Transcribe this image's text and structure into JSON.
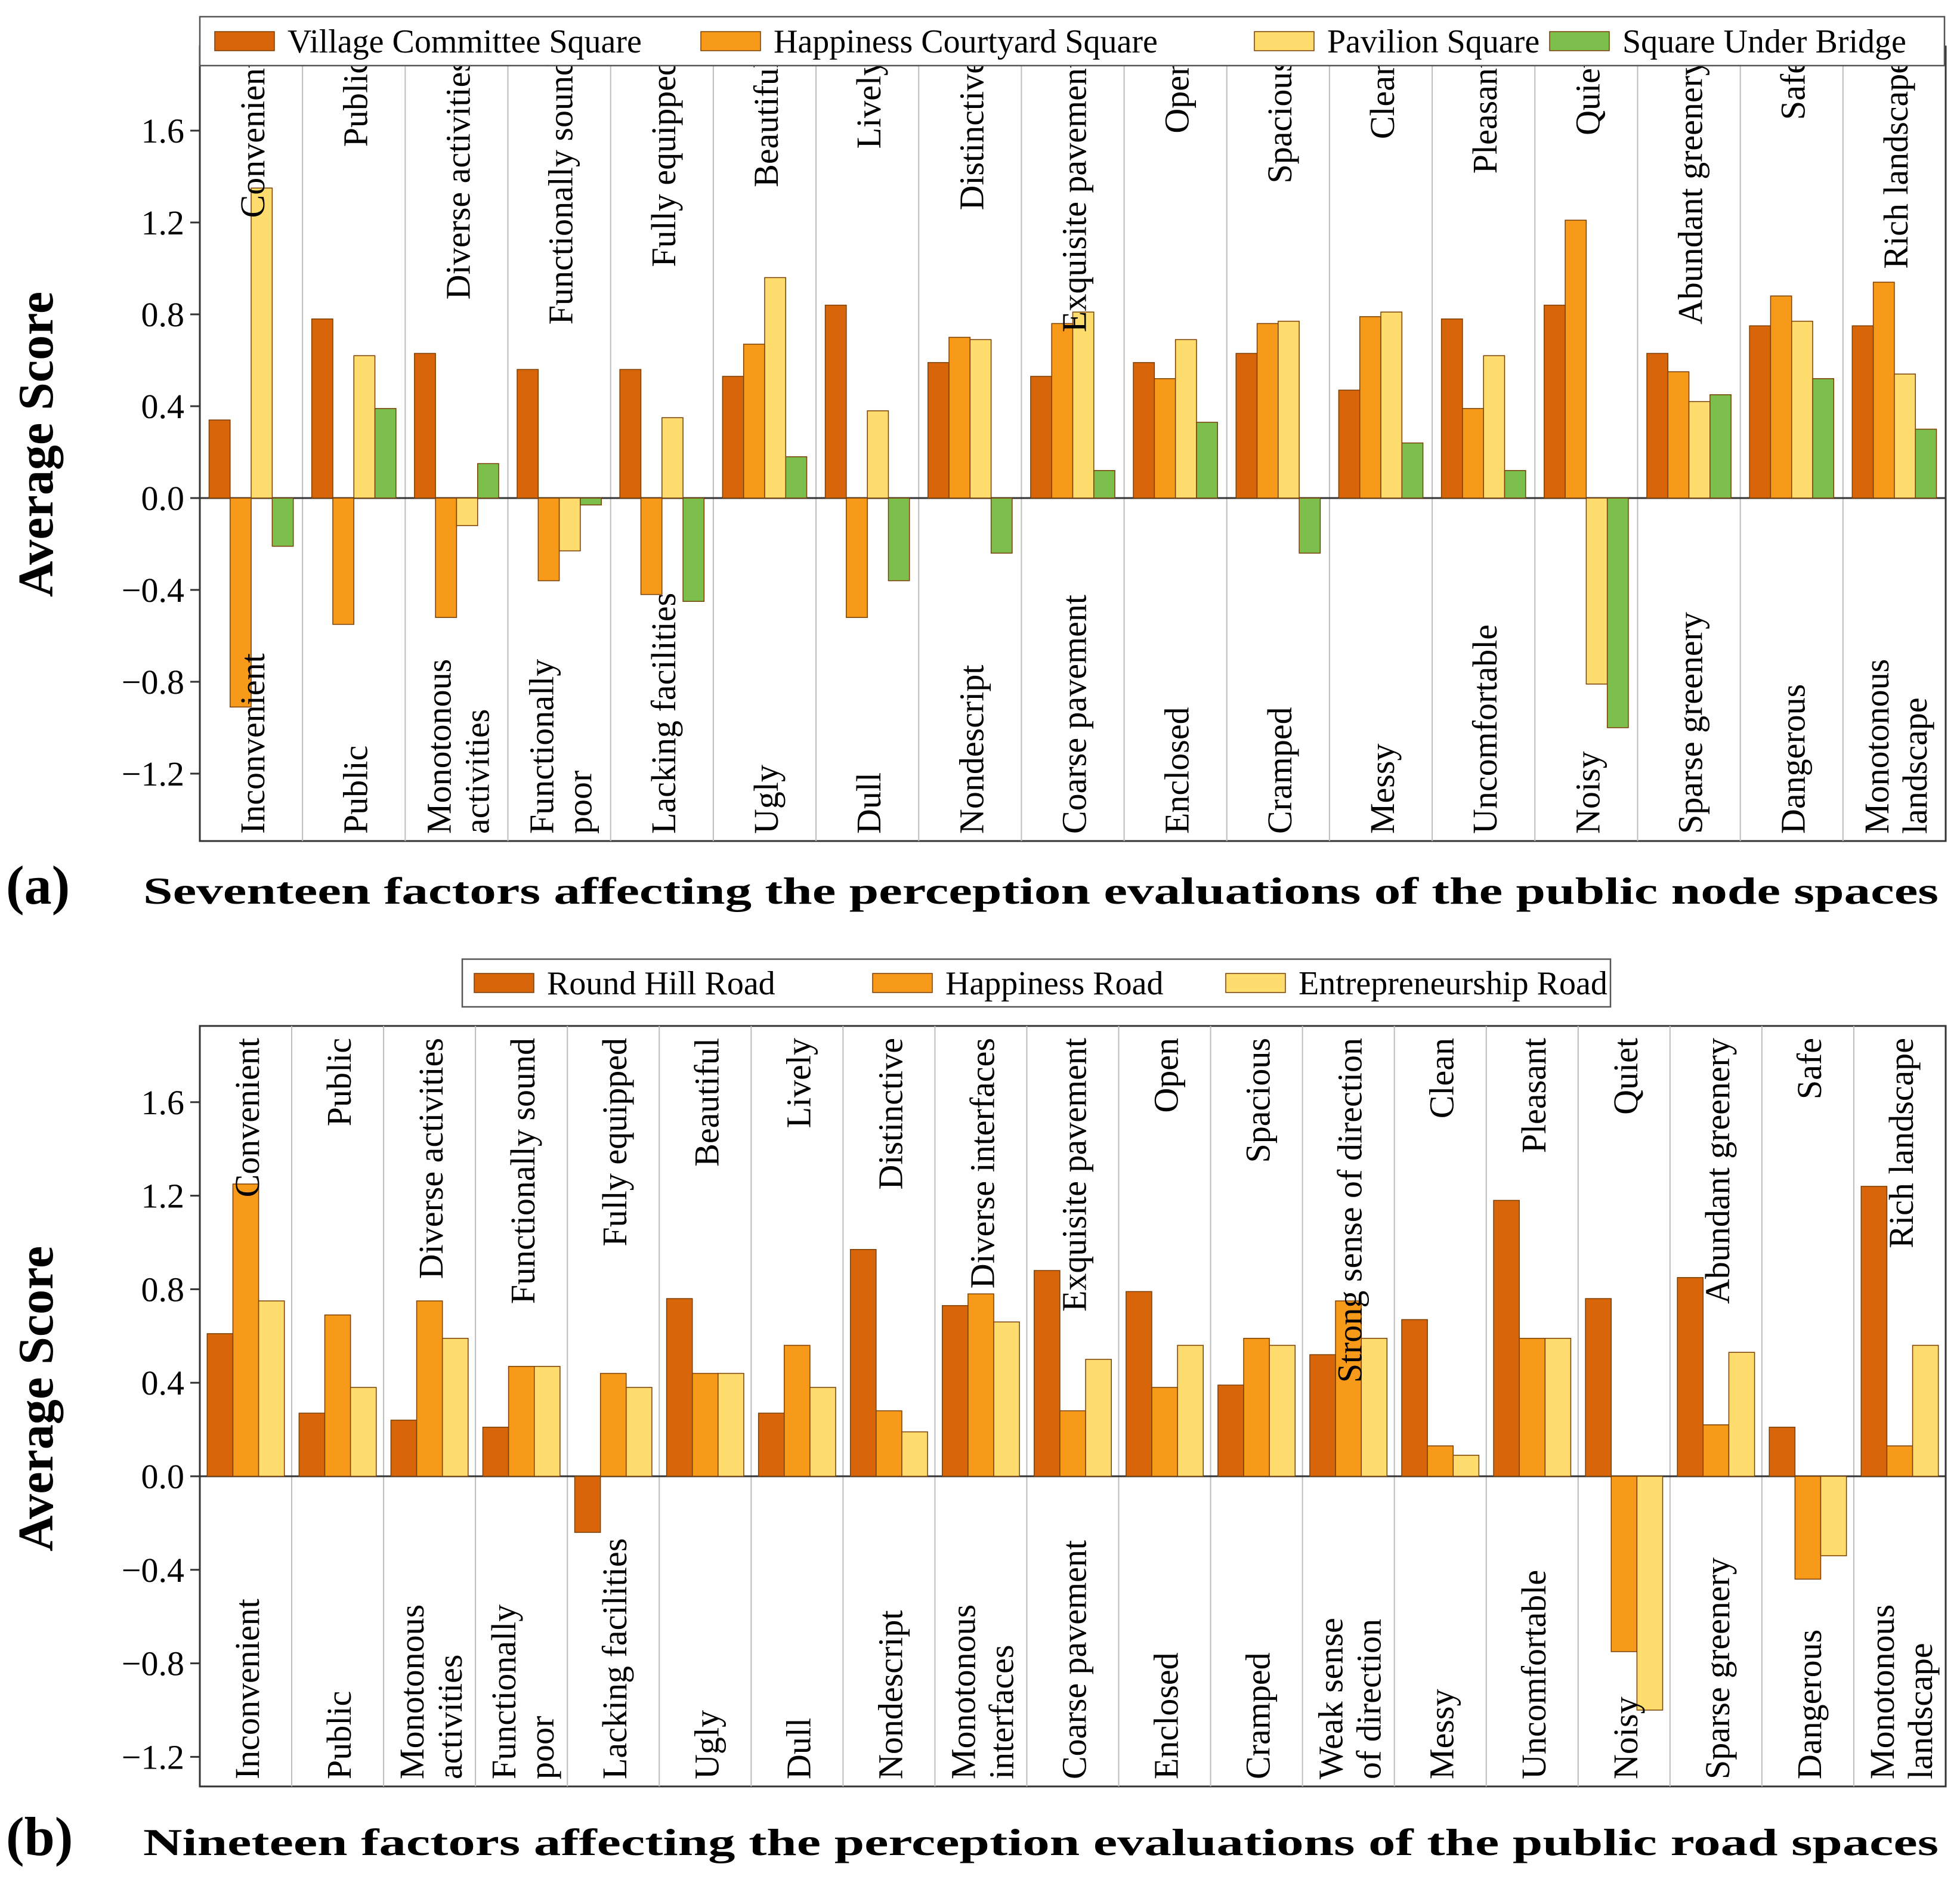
{
  "colors": {
    "village_committee": "#D9650A",
    "happiness_courtyard": "#F79A1A",
    "pavilion": "#FEDD6E",
    "under_bridge": "#7CBF4D",
    "bar_edge": "#7a3f05",
    "grid": "#bdbdbd",
    "axis": "#333333"
  },
  "chart_data": [
    {
      "type": "bar",
      "panel_label": "(a)",
      "caption": "Seventeen factors affecting the perception evaluations of the public node spaces",
      "ylabel": "Average Score",
      "ylim": [
        -1.5,
        1.8
      ],
      "yticks": [
        "1.6",
        "1.2",
        "0.8",
        "0.4",
        "0.0",
        "−0.4",
        "−0.8",
        "−1.2"
      ],
      "ytick_values": [
        1.6,
        1.2,
        0.8,
        0.4,
        0.0,
        -0.4,
        -0.8,
        -1.2
      ],
      "legend": [
        "Village Committee Square",
        "Happiness Courtyard Square",
        "Pavilion Square",
        "Square Under Bridge"
      ],
      "positive_labels": [
        "Convenient",
        "Public",
        "Diverse activities",
        "Functionally sound",
        "Fully equipped",
        "Beautiful",
        "Lively",
        "Distinctive",
        "Exquisite pavement",
        "Open",
        "Spacious",
        "Clean",
        "Pleasant",
        "Quiet",
        "Abundant greenery",
        "Safe",
        "Rich landscape"
      ],
      "negative_labels": [
        [
          "Inconvenient"
        ],
        [
          "Public"
        ],
        [
          "Monotonous",
          "activities"
        ],
        [
          "Functionally",
          "poor"
        ],
        [
          "Lacking facilities"
        ],
        [
          "Ugly"
        ],
        [
          "Dull"
        ],
        [
          "Nondescript"
        ],
        [
          "Coarse pavement"
        ],
        [
          "Enclosed"
        ],
        [
          "Cramped"
        ],
        [
          "Messy"
        ],
        [
          "Uncomfortable"
        ],
        [
          "Noisy"
        ],
        [
          "Sparse greenery"
        ],
        [
          "Dangerous"
        ],
        [
          "Monotonous",
          "landscape"
        ]
      ],
      "series": [
        {
          "name": "Village Committee Square",
          "values": [
            0.34,
            0.78,
            0.63,
            0.56,
            0.56,
            0.53,
            0.84,
            0.59,
            0.53,
            0.59,
            0.63,
            0.47,
            0.78,
            0.84,
            0.63,
            0.75,
            0.75
          ]
        },
        {
          "name": "Happiness Courtyard Square",
          "values": [
            -0.91,
            -0.55,
            -0.52,
            -0.36,
            -0.42,
            0.67,
            -0.52,
            0.7,
            0.76,
            0.52,
            0.76,
            0.79,
            0.39,
            1.21,
            0.55,
            0.88,
            0.94
          ]
        },
        {
          "name": "Pavilion Square",
          "values": [
            1.35,
            0.62,
            -0.12,
            -0.23,
            0.35,
            0.96,
            0.38,
            0.69,
            0.81,
            0.69,
            0.77,
            0.81,
            0.62,
            -0.81,
            0.42,
            0.77,
            0.54
          ]
        },
        {
          "name": "Square Under Bridge",
          "values": [
            -0.21,
            0.39,
            0.15,
            -0.03,
            -0.45,
            0.18,
            -0.36,
            -0.24,
            0.12,
            0.33,
            -0.24,
            0.24,
            0.12,
            -1.0,
            0.45,
            0.52,
            0.3
          ]
        }
      ]
    },
    {
      "type": "bar",
      "panel_label": "(b)",
      "caption": "Nineteen factors affecting the perception evaluations of the public road spaces",
      "ylabel": "Average Score",
      "ylim": [
        -1.4,
        1.9
      ],
      "yticks": [
        "1.6",
        "1.2",
        "0.8",
        "0.4",
        "0.0",
        "−0.4",
        "−0.8",
        "−1.2"
      ],
      "ytick_values": [
        1.6,
        1.2,
        0.8,
        0.4,
        0.0,
        -0.4,
        -0.8,
        -1.2
      ],
      "legend": [
        "Round Hill Road",
        "Happiness Road",
        "Entrepreneurship Road"
      ],
      "positive_labels": [
        "Convenient",
        "Public",
        "Diverse activities",
        "Functionally sound",
        "Fully equipped",
        "Beautiful",
        "Lively",
        "Distinctive",
        "Diverse interfaces",
        "Exquisite pavement",
        "Open",
        "Spacious",
        "Strong sense of direction",
        "Clean",
        "Pleasant",
        "Quiet",
        "Abundant greenery",
        "Safe",
        "Rich landscape"
      ],
      "negative_labels": [
        [
          "Inconvenient"
        ],
        [
          "Public"
        ],
        [
          "Monotonous",
          "activities"
        ],
        [
          "Functionally",
          "poor"
        ],
        [
          "Lacking facilities"
        ],
        [
          "Ugly"
        ],
        [
          "Dull"
        ],
        [
          "Nondescript"
        ],
        [
          "Monotonous",
          "interfaces"
        ],
        [
          "Coarse pavement"
        ],
        [
          "Enclosed"
        ],
        [
          "Cramped"
        ],
        [
          "Weak sense",
          "of direction"
        ],
        [
          "Messy"
        ],
        [
          "Uncomfortable"
        ],
        [
          "Noisy"
        ],
        [
          "Sparse greenery"
        ],
        [
          "Dangerous"
        ],
        [
          "Monotonous",
          "landscape"
        ]
      ],
      "series": [
        {
          "name": "Round Hill Road",
          "values": [
            0.61,
            0.27,
            0.24,
            0.21,
            -0.24,
            0.76,
            0.27,
            0.97,
            0.73,
            0.88,
            0.79,
            0.39,
            0.52,
            0.67,
            1.18,
            0.76,
            0.85,
            0.21,
            1.24
          ]
        },
        {
          "name": "Happiness Road",
          "values": [
            1.25,
            0.69,
            0.75,
            0.47,
            0.44,
            0.44,
            0.56,
            0.28,
            0.78,
            0.28,
            0.38,
            0.59,
            0.75,
            0.13,
            0.59,
            -0.75,
            0.22,
            -0.44,
            0.13
          ]
        },
        {
          "name": "Entrepreneurship Road",
          "values": [
            0.75,
            0.38,
            0.59,
            0.47,
            0.38,
            0.44,
            0.38,
            0.19,
            0.66,
            0.5,
            0.56,
            0.56,
            0.59,
            0.09,
            0.59,
            -1.0,
            0.53,
            -0.34,
            0.56
          ]
        }
      ]
    }
  ]
}
